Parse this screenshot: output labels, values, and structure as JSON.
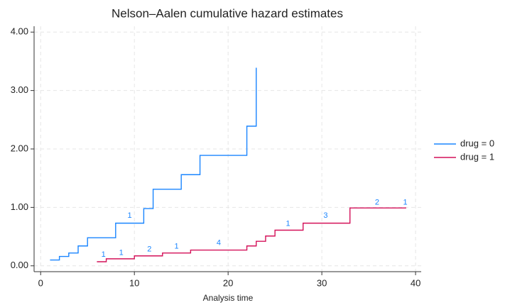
{
  "chart_data": {
    "type": "step",
    "title": "Nelson–Aalen cumulative hazard estimates",
    "x_label": "Analysis time",
    "xlim": [
      -0.7,
      40.6
    ],
    "ylim": [
      -0.1,
      4.1
    ],
    "xticks": [
      0,
      10,
      20,
      30,
      40
    ],
    "yticks": [
      {
        "value": 0,
        "label": "0.00"
      },
      {
        "value": 1,
        "label": "1.00"
      },
      {
        "value": 2,
        "label": "2.00"
      },
      {
        "value": 3,
        "label": "3.00"
      },
      {
        "value": 4,
        "label": "4.00"
      }
    ],
    "grid": true,
    "legend": "right",
    "series": [
      {
        "name": "drug = 0",
        "color": "#1a85ff",
        "x": [
          1,
          2,
          3,
          4,
          5,
          8,
          11,
          12,
          15,
          17,
          22,
          23
        ],
        "values": [
          0.1,
          0.16,
          0.22,
          0.34,
          0.48,
          0.73,
          0.98,
          1.31,
          1.56,
          1.89,
          2.39,
          3.39
        ]
      },
      {
        "name": "drug = 1",
        "color": "#d41159",
        "x": [
          6,
          7,
          10,
          13,
          16,
          22,
          23,
          24,
          25,
          28,
          33,
          39
        ],
        "values": [
          0.07,
          0.12,
          0.17,
          0.22,
          0.27,
          0.34,
          0.42,
          0.51,
          0.61,
          0.73,
          0.99,
          0.99
        ]
      }
    ],
    "annotation_color": "#1a85ff",
    "annotations": [
      {
        "label": "1",
        "x": 9.5,
        "y": 0.86
      },
      {
        "label": "1",
        "x": 6.7,
        "y": 0.19
      },
      {
        "label": "1",
        "x": 8.6,
        "y": 0.22
      },
      {
        "label": "2",
        "x": 11.6,
        "y": 0.28
      },
      {
        "label": "1",
        "x": 14.5,
        "y": 0.33
      },
      {
        "label": "4",
        "x": 19,
        "y": 0.39
      },
      {
        "label": "1",
        "x": 26.4,
        "y": 0.72
      },
      {
        "label": "3",
        "x": 30.4,
        "y": 0.86
      },
      {
        "label": "2",
        "x": 35.9,
        "y": 1.08
      },
      {
        "label": "1",
        "x": 38.9,
        "y": 1.08
      }
    ]
  }
}
